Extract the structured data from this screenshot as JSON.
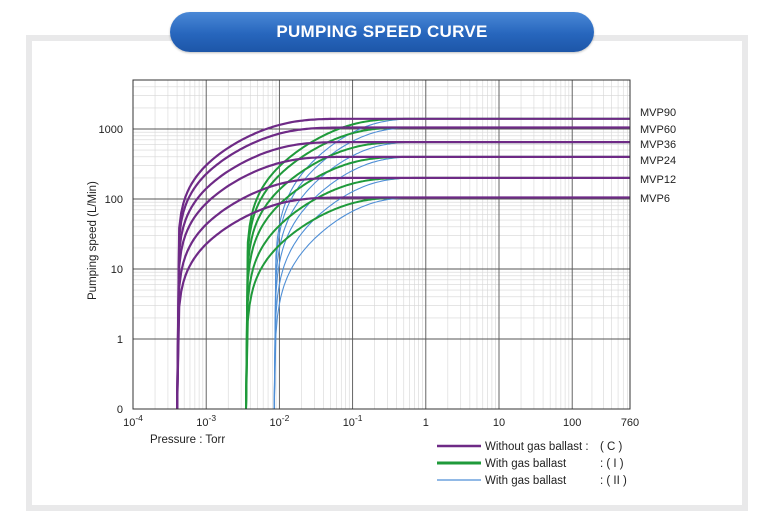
{
  "title": "PUMPING SPEED CURVE",
  "chart_data": {
    "type": "line",
    "title": "PUMPING SPEED CURVE",
    "xlabel": "Pressure : Torr",
    "ylabel": "Pumping speed (L/Min)",
    "x_scale": "log",
    "y_scale": "log-with-zero",
    "xlim": [
      0.0001,
      760
    ],
    "ylim": [
      0,
      1000
    ],
    "x_ticks": [
      {
        "base": "10",
        "exp": "-4"
      },
      {
        "base": "10",
        "exp": "-3"
      },
      {
        "base": "10",
        "exp": "-2"
      },
      {
        "base": "10",
        "exp": "-1"
      },
      {
        "base": "1",
        "exp": ""
      },
      {
        "base": "10",
        "exp": ""
      },
      {
        "base": "100",
        "exp": ""
      },
      {
        "base": "760",
        "exp": ""
      }
    ],
    "y_ticks": [
      "0",
      "1",
      "10",
      "100",
      "1000"
    ],
    "grid": true,
    "colors": {
      "without_gas_ballast": "#6e2a86",
      "with_gas_ballast_I": "#1f9a3a",
      "with_gas_ballast_II": "#4f8fd6"
    },
    "series": [
      {
        "name": "MVP90",
        "mode": "C",
        "plateau": 1400
      },
      {
        "name": "MVP60",
        "mode": "C",
        "plateau": 1050
      },
      {
        "name": "MVP36",
        "mode": "C",
        "plateau": 650
      },
      {
        "name": "MVP24",
        "mode": "C",
        "plateau": 400
      },
      {
        "name": "MVP12",
        "mode": "C",
        "plateau": 200
      },
      {
        "name": "MVP6",
        "mode": "C",
        "plateau": 105
      }
    ],
    "legend": {
      "position": "bottom-right",
      "entries": [
        {
          "label": "Without gas ballast :",
          "code": "( C )",
          "style": "C"
        },
        {
          "label": "With gas ballast",
          "code": ": ( I )",
          "style": "I"
        },
        {
          "label": "With gas ballast",
          "code": ": ( II )",
          "style": "II"
        }
      ]
    }
  }
}
